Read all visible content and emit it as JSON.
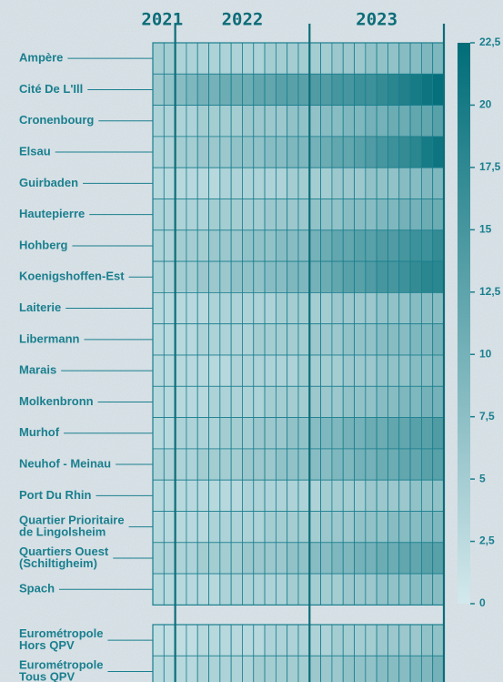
{
  "chart_data": [
    {
      "type": "heatmap",
      "column_groups": [
        {
          "label": "2021",
          "count": 2
        },
        {
          "label": "2022",
          "count": 12
        },
        {
          "label": "2023",
          "count": 12
        }
      ],
      "rows": [
        [
          "Ampère"
        ],
        [
          "Cité De L'Ill"
        ],
        [
          "Cronenbourg"
        ],
        [
          "Elsau"
        ],
        [
          "Guirbaden"
        ],
        [
          "Hautepierre"
        ],
        [
          "Hohberg"
        ],
        [
          "Koenigshoffen-Est"
        ],
        [
          "Laiterie"
        ],
        [
          "Libermann"
        ],
        [
          "Marais"
        ],
        [
          "Molkenbronn"
        ],
        [
          "Murhof"
        ],
        [
          "Neuhof - Meinau"
        ],
        [
          "Port Du Rhin"
        ],
        [
          "Quartier Prioritaire",
          "de Lingolsheim"
        ],
        [
          "Quartiers Ouest",
          "(Schiltigheim)"
        ],
        [
          "Spach"
        ]
      ],
      "values": [
        [
          5,
          5,
          4,
          4,
          4,
          4,
          4,
          4,
          4,
          4,
          5,
          5,
          5,
          5,
          5,
          5,
          6,
          6,
          6,
          7,
          7,
          7,
          8,
          8,
          9,
          9
        ],
        [
          6,
          7,
          8,
          9,
          10,
          10,
          11,
          11,
          11,
          12,
          12,
          13,
          13,
          13,
          14,
          14,
          15,
          15,
          16,
          16,
          17,
          18,
          19,
          20,
          21,
          22
        ],
        [
          4,
          4,
          4,
          4,
          5,
          5,
          5,
          5,
          6,
          6,
          6,
          6,
          7,
          7,
          7,
          8,
          8,
          9,
          9,
          10,
          10,
          11,
          11,
          12,
          12,
          13
        ],
        [
          4,
          4,
          5,
          5,
          6,
          6,
          6,
          7,
          7,
          7,
          8,
          8,
          9,
          9,
          10,
          11,
          12,
          12,
          13,
          14,
          15,
          16,
          17,
          18,
          20,
          21
        ],
        [
          3,
          3,
          3,
          3,
          3,
          3,
          4,
          4,
          4,
          4,
          4,
          4,
          5,
          5,
          5,
          5,
          6,
          6,
          6,
          7,
          7,
          7,
          8,
          8,
          9,
          9
        ],
        [
          4,
          4,
          4,
          4,
          4,
          5,
          5,
          5,
          5,
          5,
          6,
          6,
          6,
          6,
          7,
          7,
          7,
          8,
          8,
          8,
          9,
          9,
          10,
          10,
          11,
          11
        ],
        [
          4,
          4,
          5,
          5,
          5,
          6,
          6,
          6,
          7,
          7,
          7,
          8,
          8,
          8,
          10,
          11,
          12,
          12,
          13,
          13,
          14,
          14,
          15,
          16,
          16,
          17
        ],
        [
          4,
          4,
          5,
          5,
          6,
          6,
          6,
          7,
          7,
          7,
          8,
          8,
          9,
          9,
          10,
          11,
          12,
          13,
          13,
          14,
          15,
          15,
          16,
          17,
          18,
          18
        ],
        [
          3,
          3,
          3,
          3,
          3,
          4,
          4,
          4,
          4,
          4,
          4,
          5,
          5,
          5,
          5,
          5,
          6,
          6,
          6,
          6,
          7,
          7,
          7,
          8,
          8,
          8
        ],
        [
          3,
          3,
          3,
          3,
          4,
          4,
          4,
          4,
          4,
          5,
          5,
          5,
          5,
          5,
          6,
          6,
          6,
          7,
          7,
          7,
          8,
          8,
          8,
          9,
          9,
          10
        ],
        [
          3,
          3,
          3,
          3,
          3,
          3,
          3,
          4,
          4,
          4,
          4,
          4,
          4,
          5,
          5,
          5,
          5,
          6,
          6,
          6,
          7,
          7,
          7,
          8,
          8,
          9
        ],
        [
          3,
          3,
          3,
          3,
          3,
          4,
          4,
          4,
          4,
          4,
          5,
          5,
          5,
          5,
          6,
          6,
          6,
          7,
          7,
          7,
          8,
          8,
          9,
          9,
          10,
          10
        ],
        [
          3,
          3,
          4,
          4,
          4,
          4,
          5,
          5,
          5,
          6,
          6,
          6,
          7,
          7,
          8,
          9,
          9,
          10,
          10,
          11,
          11,
          12,
          12,
          13,
          13,
          14
        ],
        [
          4,
          4,
          4,
          4,
          5,
          5,
          5,
          5,
          6,
          6,
          6,
          7,
          7,
          7,
          8,
          8,
          9,
          9,
          10,
          10,
          11,
          11,
          12,
          12,
          13,
          13
        ],
        [
          3,
          3,
          3,
          3,
          3,
          3,
          3,
          3,
          4,
          4,
          4,
          4,
          4,
          4,
          4,
          5,
          5,
          5,
          5,
          6,
          6,
          6,
          6,
          7,
          7,
          7
        ],
        [
          3,
          3,
          3,
          3,
          3,
          4,
          4,
          4,
          4,
          4,
          5,
          5,
          5,
          5,
          5,
          6,
          6,
          6,
          7,
          7,
          7,
          8,
          8,
          8,
          9,
          9
        ],
        [
          4,
          4,
          4,
          4,
          5,
          5,
          5,
          5,
          6,
          6,
          6,
          6,
          7,
          7,
          8,
          8,
          9,
          9,
          10,
          10,
          11,
          11,
          12,
          12,
          13,
          13
        ],
        [
          3,
          3,
          3,
          3,
          3,
          3,
          4,
          4,
          4,
          4,
          4,
          4,
          5,
          5,
          5,
          5,
          5,
          6,
          6,
          6,
          7,
          7,
          7,
          8,
          8,
          8
        ]
      ],
      "clim": [
        0,
        22.5
      ],
      "cticks": [
        0,
        {
          "value": 2.5,
          "label": "2,5"
        },
        5,
        {
          "value": 7.5,
          "label": "7,5"
        },
        10,
        {
          "value": 12.5,
          "label": "12,5"
        },
        15,
        {
          "value": 17.5,
          "label": "17,5"
        },
        20,
        {
          "value": 22.5,
          "label": "22,5"
        }
      ],
      "colors": [
        "#d3e8ec",
        "#006d78"
      ]
    },
    {
      "type": "heatmap",
      "rows": [
        [
          "Eurométropole",
          "Hors QPV"
        ],
        [
          "Eurométropole",
          "Tous QPV"
        ]
      ],
      "values": [
        [
          2,
          2,
          2,
          2,
          3,
          3,
          3,
          3,
          3,
          3,
          4,
          4,
          4,
          4,
          4,
          4,
          5,
          5,
          5,
          5,
          6,
          6,
          6,
          6,
          7,
          7
        ],
        [
          3,
          3,
          3,
          3,
          4,
          4,
          4,
          4,
          4,
          5,
          5,
          5,
          5,
          5,
          6,
          6,
          6,
          7,
          7,
          7,
          8,
          8,
          8,
          9,
          9,
          10
        ]
      ],
      "clim": [
        0,
        22.5
      ],
      "colors": [
        "#d3e8ec",
        "#006d78"
      ]
    }
  ]
}
